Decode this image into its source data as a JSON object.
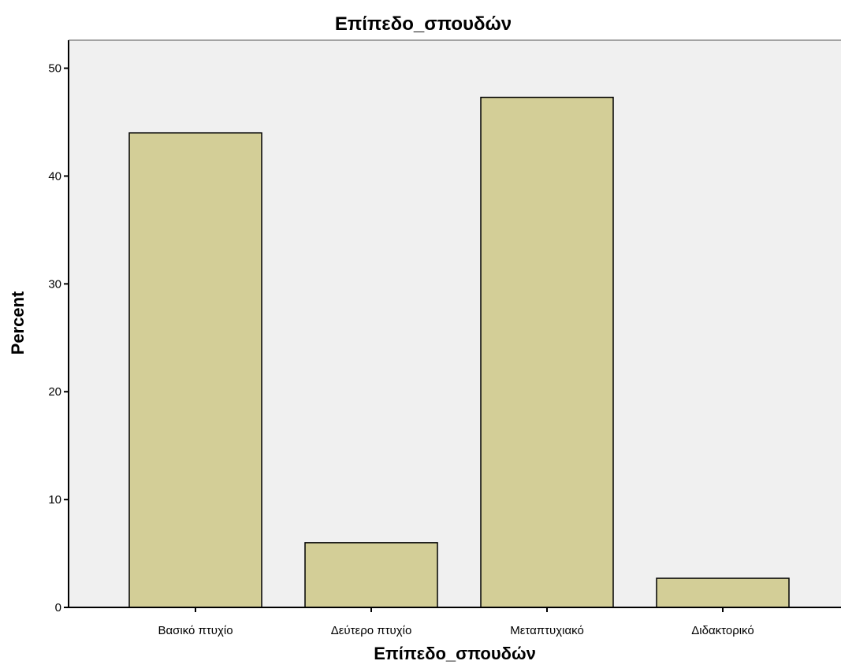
{
  "colors": {
    "plot_background": "#f0f0f0",
    "bar_fill": "#d3ce97",
    "bar_stroke": "#000000",
    "axis": "#000000"
  },
  "chart_data": {
    "type": "bar",
    "title": "Επίπεδο_σπουδών",
    "xlabel": "Επίπεδο_σπουδών",
    "ylabel": "Percent",
    "categories": [
      "Βασικό πτυχίο",
      "Δεύτερο πτυχίο",
      "Μεταπτυχιακό",
      "Διδακτορικό"
    ],
    "values": [
      44.0,
      6.0,
      47.3,
      2.7
    ],
    "ylim": [
      0,
      52.6
    ],
    "yticks": [
      0,
      10,
      20,
      30,
      40,
      50
    ],
    "grid": false,
    "legend": "none"
  }
}
